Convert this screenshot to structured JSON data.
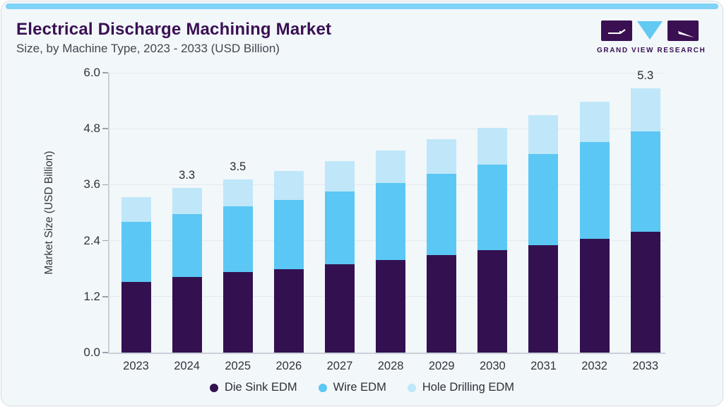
{
  "header": {
    "title": "Electrical Discharge Machining Market",
    "subtitle": "Size, by Machine Type, 2023 - 2033 (USD Billion)"
  },
  "logo": {
    "text": "GRAND VIEW RESEARCH"
  },
  "colors": {
    "accent_bar": "#7ed3f6",
    "card_background": "#f2f7fa",
    "title_text": "#3a1053",
    "die_sink_edm": "#331150",
    "wire_edm": "#5bc7f4",
    "hole_drilling_edm": "#bfe7f9"
  },
  "chart_data": {
    "type": "bar",
    "stacked": true,
    "title": "Electrical Discharge Machining Market",
    "subtitle": "Size, by Machine Type, 2023 - 2033 (USD Billion)",
    "xlabel": "",
    "ylabel": "Market Size (USD Billion)",
    "ylim": [
      0,
      6.0
    ],
    "yticks": [
      0.0,
      1.2,
      2.4,
      3.6,
      4.8,
      6.0
    ],
    "grid": true,
    "legend_position": "bottom",
    "categories": [
      "2023",
      "2024",
      "2025",
      "2026",
      "2027",
      "2028",
      "2029",
      "2030",
      "2031",
      "2032",
      "2033"
    ],
    "series": [
      {
        "name": "Die Sink EDM",
        "color": "#331150",
        "values": [
          1.42,
          1.52,
          1.61,
          1.68,
          1.78,
          1.86,
          1.96,
          2.05,
          2.16,
          2.29,
          2.42
        ]
      },
      {
        "name": "Wire EDM",
        "color": "#5bc7f4",
        "values": [
          1.21,
          1.26,
          1.32,
          1.39,
          1.45,
          1.54,
          1.63,
          1.72,
          1.82,
          1.93,
          2.02
        ]
      },
      {
        "name": "Hole Drilling EDM",
        "color": "#bfe7f9",
        "values": [
          0.49,
          0.53,
          0.55,
          0.58,
          0.61,
          0.65,
          0.69,
          0.74,
          0.79,
          0.82,
          0.87
        ]
      }
    ],
    "totals_shown": [
      {
        "year": "2024",
        "label": "3.3"
      },
      {
        "year": "2025",
        "label": "3.5"
      },
      {
        "year": "2033",
        "label": "5.3"
      }
    ]
  }
}
